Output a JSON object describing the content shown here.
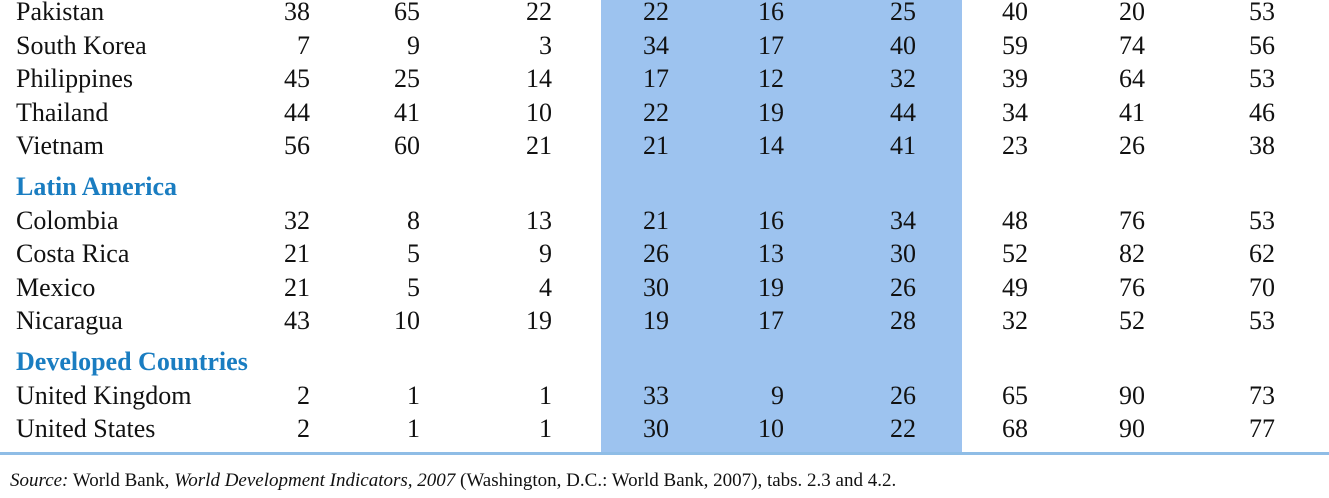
{
  "table": {
    "groups": [
      {
        "rows": [
          [
            "Pakistan",
            38,
            65,
            22,
            22,
            16,
            25,
            40,
            20,
            53
          ],
          [
            "South Korea",
            7,
            9,
            3,
            34,
            17,
            40,
            59,
            74,
            56
          ],
          [
            "Philippines",
            45,
            25,
            14,
            17,
            12,
            32,
            39,
            64,
            53
          ],
          [
            "Thailand",
            44,
            41,
            10,
            22,
            19,
            44,
            34,
            41,
            46
          ],
          [
            "Vietnam",
            56,
            60,
            21,
            21,
            14,
            41,
            23,
            26,
            38
          ]
        ]
      },
      {
        "title": "Latin America",
        "rows": [
          [
            "Colombia",
            32,
            8,
            13,
            21,
            16,
            34,
            48,
            76,
            53
          ],
          [
            "Costa Rica",
            21,
            5,
            9,
            26,
            13,
            30,
            52,
            82,
            62
          ],
          [
            "Mexico",
            21,
            5,
            4,
            30,
            19,
            26,
            49,
            76,
            70
          ],
          [
            "Nicaragua",
            43,
            10,
            19,
            19,
            17,
            28,
            32,
            52,
            53
          ]
        ]
      },
      {
        "title": "Developed Countries",
        "rows": [
          [
            "United Kingdom",
            2,
            1,
            1,
            33,
            9,
            26,
            65,
            90,
            73
          ],
          [
            "United States",
            2,
            1,
            1,
            30,
            10,
            22,
            68,
            90,
            77
          ]
        ]
      }
    ]
  },
  "source": {
    "label": "Source:",
    "author": "World Bank,",
    "title": "World Development Indicators, 2007",
    "rest": "(Washington, D.C.: World Bank, 2007), tabs. 2.3 and 4.2."
  }
}
